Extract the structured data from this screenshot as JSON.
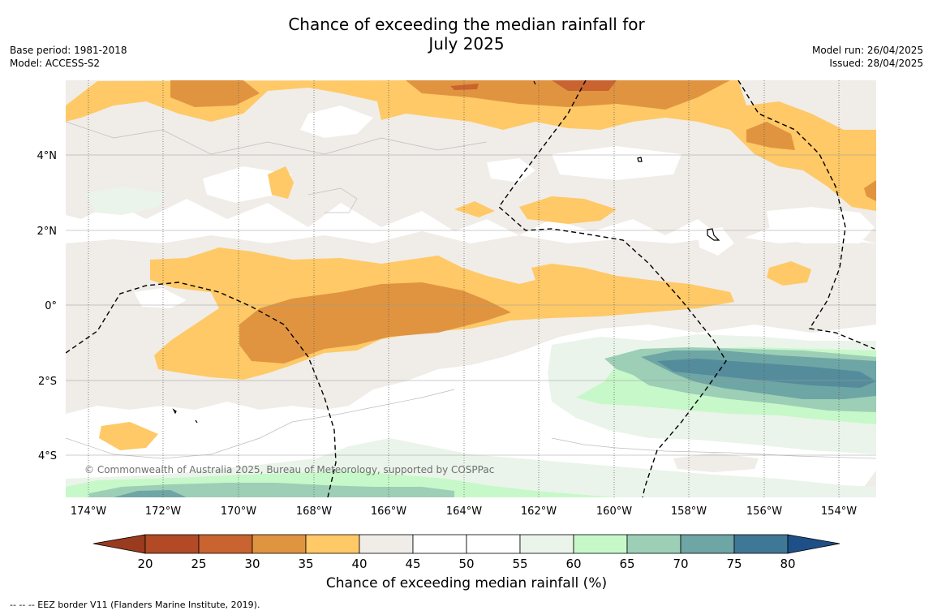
{
  "title": {
    "line1": "Chance of exceeding the median rainfall for",
    "line2": "July 2025"
  },
  "meta_left": {
    "base_period": "Base period: 1981-2018",
    "model": "Model: ACCESS-S2"
  },
  "meta_right": {
    "model_run": "Model run: 26/04/2025",
    "issued": "Issued: 28/04/2025"
  },
  "map": {
    "lat_labels": [
      "4°N",
      "2°N",
      "0°",
      "2°S",
      "4°S"
    ],
    "lon_labels": [
      "174°W",
      "172°W",
      "170°W",
      "168°W",
      "166°W",
      "164°W",
      "162°W",
      "160°W",
      "158°W",
      "156°W",
      "154°W"
    ],
    "copyright": "© Commonwealth of Australia 2025, Bureau of Meteorology, supported by COSPPac",
    "gridlines": true
  },
  "colorbar": {
    "ticks": [
      "20",
      "25",
      "30",
      "35",
      "40",
      "45",
      "50",
      "55",
      "60",
      "65",
      "70",
      "75",
      "80"
    ],
    "colors": [
      "#b24a26",
      "#c9632f",
      "#e09440",
      "#fec966",
      "#f0ece7",
      "#ffffff",
      "#ffffff",
      "#eaf4ea",
      "#c7f8c9",
      "#9ccfb6",
      "#6ea5a5",
      "#3f7896"
    ],
    "low_extend_color": "#9a3a1e",
    "high_extend_color": "#1e4f86",
    "label": "Chance of exceeding median rainfall (%)"
  },
  "footer": "--  --  -- EEZ border V11 (Flanders Marine Institute, 2019)."
}
